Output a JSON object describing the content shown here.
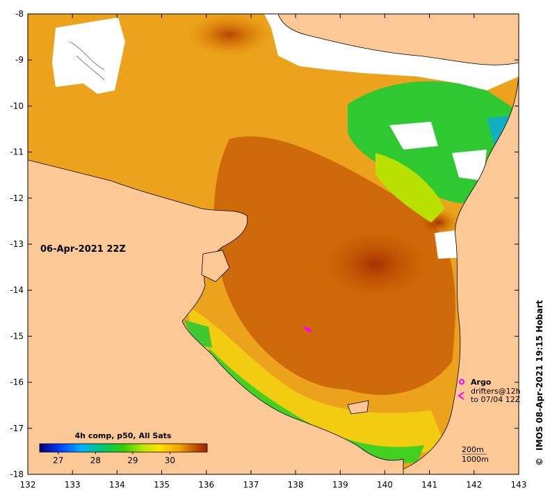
{
  "map": {
    "timestamp_label": "06-Apr-2021 22Z",
    "credit": "IMOS 08-Apr-2021 19:15 Hobart",
    "copyright_symbol": "©",
    "lon_ticks": [
      "132",
      "133",
      "134",
      "135",
      "136",
      "137",
      "138",
      "139",
      "140",
      "141",
      "142",
      "143"
    ],
    "lat_ticks": [
      "-8",
      "-9",
      "-10",
      "-11",
      "-12",
      "-13",
      "-14",
      "-15",
      "-16",
      "-17",
      "-18"
    ],
    "lon_range": [
      132,
      143
    ],
    "lat_range": [
      -18,
      -8
    ],
    "colorbar": {
      "title": "4h comp, p50, All Sats",
      "tick_labels": [
        "27",
        "28",
        "29",
        "30"
      ],
      "range": [
        26.5,
        31
      ],
      "colors": [
        "#000080",
        "#0050ff",
        "#00c8ff",
        "#00d060",
        "#40e000",
        "#c8f000",
        "#ffe000",
        "#ffa000",
        "#d06000",
        "#a02000"
      ]
    },
    "legend": {
      "argo_label": "Argo",
      "drifters_label": "drifters@12h",
      "drifters_sub": "to 07/04 12Z",
      "argo_color": "#ff00ff",
      "drifter_color": "#ff00ff"
    },
    "contour_labels": [
      "200m",
      "1000m"
    ],
    "land_color": "#fbc896",
    "cloud_color": "#ffffff"
  }
}
